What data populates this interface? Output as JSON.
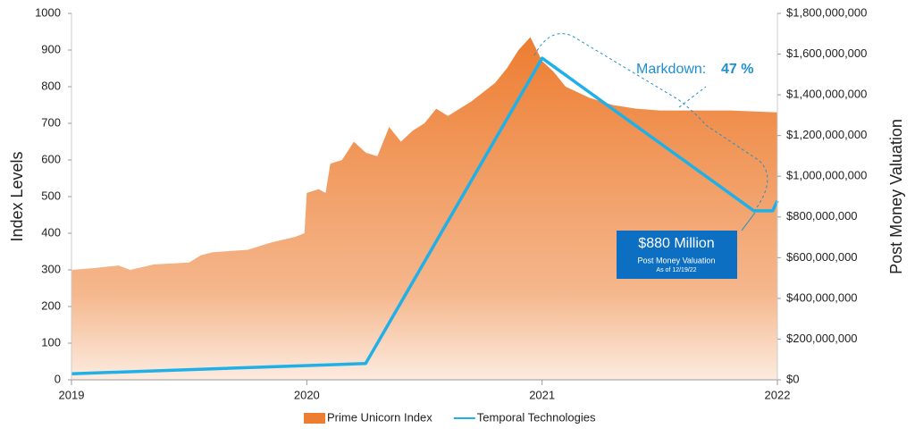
{
  "chart_data": {
    "type": "area-line",
    "xlim": [
      2019,
      2022
    ],
    "xticks": [
      2019,
      2020,
      2021,
      2022
    ],
    "ylim": [
      0,
      1000
    ],
    "yticks": [
      0,
      100,
      200,
      300,
      400,
      500,
      600,
      700,
      800,
      900,
      1000
    ],
    "y2lim": [
      0,
      1800000000
    ],
    "y2ticks": [
      {
        "value": 0,
        "label": "$0"
      },
      {
        "value": 200000000,
        "label": "$200,000,000"
      },
      {
        "value": 400000000,
        "label": "$400,000,000"
      },
      {
        "value": 600000000,
        "label": "$600,000,000"
      },
      {
        "value": 800000000,
        "label": "$800,000,000"
      },
      {
        "value": 1000000000,
        "label": "$1,000,000,000"
      },
      {
        "value": 1200000000,
        "label": "$1,200,000,000"
      },
      {
        "value": 1400000000,
        "label": "$1,400,000,000"
      },
      {
        "value": 1600000000,
        "label": "$1,600,000,000"
      },
      {
        "value": 1800000000,
        "label": "$1,800,000,000"
      }
    ],
    "y_label": "Index Levels",
    "y2_label": "Post Money Valuation",
    "legend": "bottom",
    "series": [
      {
        "name": "Prime Unicorn Index",
        "kind": "area",
        "color": "#ed7d31",
        "x": [
          2019.0,
          2019.1,
          2019.2,
          2019.25,
          2019.35,
          2019.5,
          2019.55,
          2019.6,
          2019.75,
          2019.85,
          2019.95,
          2019.99,
          2020.0,
          2020.05,
          2020.08,
          2020.1,
          2020.15,
          2020.2,
          2020.25,
          2020.3,
          2020.35,
          2020.4,
          2020.45,
          2020.5,
          2020.55,
          2020.6,
          2020.7,
          2020.8,
          2020.85,
          2020.9,
          2020.95,
          2021.0,
          2021.05,
          2021.1,
          2021.2,
          2021.3,
          2021.4,
          2021.5,
          2021.6,
          2021.8,
          2022.0
        ],
        "values": [
          300,
          305,
          312,
          300,
          315,
          320,
          340,
          348,
          355,
          375,
          390,
          400,
          510,
          520,
          510,
          590,
          600,
          650,
          620,
          610,
          690,
          650,
          680,
          700,
          740,
          720,
          760,
          810,
          850,
          900,
          935,
          870,
          840,
          800,
          770,
          750,
          740,
          735,
          735,
          735,
          730
        ]
      },
      {
        "name": "Temporal Technologies",
        "kind": "line",
        "axis": "y2",
        "color": "#1fb0e8",
        "x": [
          2019.0,
          2020.25,
          2021.0,
          2021.9,
          2021.98,
          2022.0
        ],
        "values": [
          30000000,
          80000000,
          1580000000,
          830000000,
          830000000,
          880000000
        ]
      }
    ],
    "annotations": {
      "markdown_label": "Markdown:",
      "markdown_value": "47 %",
      "callout_title": "$880 Million",
      "callout_line1": "Post Money Valuation",
      "callout_line2": "As of 12/19/22"
    }
  }
}
